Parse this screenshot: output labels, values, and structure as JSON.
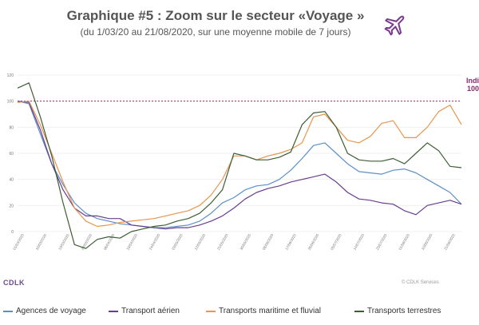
{
  "title": "Graphique #5 : Zoom sur le secteur «Voyage »",
  "subtitle": "(du 1/03/20 au 21/08/2020, sur une moyenne mobile de 7 jours)",
  "icon": "airplane-icon",
  "brand": "CDLK",
  "copyright": "© CDLK Services",
  "ref_label_1": "Indi",
  "ref_label_2": "100",
  "colors": {
    "agences": "#5b8fc7",
    "aerien": "#6a3d8f",
    "maritime": "#e6954f",
    "terrestres": "#3d5e35",
    "reference": "#8a2a6a",
    "title": "#555555"
  },
  "chart_data": {
    "type": "line",
    "ylim": [
      0,
      120
    ],
    "yticks": [
      "0",
      "20",
      "40",
      "60",
      "80",
      "100",
      "120"
    ],
    "reference_line": 100,
    "x_tick_labels": [
      "01/03/2020",
      "10/03/2020",
      "19/03/2020",
      "28/03/2020",
      "06/04/2020",
      "15/04/2020",
      "24/04/2020",
      "03/05/2020",
      "12/05/2020",
      "21/05/2020",
      "30/05/2020",
      "08/06/2020",
      "17/06/2020",
      "26/06/2020",
      "05/07/2020",
      "14/07/2020",
      "23/07/2020",
      "01/08/2020",
      "10/08/2020",
      "21/08/2020"
    ],
    "series": [
      {
        "name": "Agences de voyage",
        "color": "#5b8fc7",
        "values": [
          100,
          98,
          75,
          52,
          36,
          22,
          14,
          10,
          8,
          6,
          5,
          4,
          3,
          3,
          4,
          5,
          8,
          14,
          22,
          26,
          32,
          35,
          36,
          40,
          47,
          56,
          66,
          68,
          60,
          52,
          46,
          45,
          44,
          47,
          48,
          45,
          40,
          35,
          30,
          21
        ]
      },
      {
        "name": "Transport aérien",
        "color": "#6a3d8f",
        "values": [
          100,
          99,
          78,
          52,
          32,
          18,
          12,
          12,
          10,
          10,
          5,
          4,
          3,
          2,
          3,
          3,
          5,
          8,
          12,
          18,
          25,
          30,
          33,
          35,
          38,
          40,
          42,
          44,
          38,
          30,
          25,
          24,
          22,
          21,
          16,
          13,
          20,
          22,
          24,
          21
        ]
      },
      {
        "name": "Transports maritime et fluvial",
        "color": "#e6954f",
        "values": [
          99,
          100,
          82,
          60,
          38,
          18,
          8,
          4,
          5,
          7,
          8,
          9,
          10,
          12,
          14,
          16,
          20,
          28,
          40,
          58,
          58,
          55,
          58,
          60,
          63,
          68,
          88,
          90,
          80,
          70,
          68,
          73,
          83,
          85,
          72,
          72,
          80,
          92,
          97,
          82
        ]
      },
      {
        "name": "Transports terrestres",
        "color": "#3d5e35",
        "values": [
          110,
          114,
          88,
          58,
          22,
          -10,
          -13,
          -6,
          -4,
          -5,
          0,
          2,
          4,
          5,
          8,
          10,
          14,
          22,
          32,
          60,
          58,
          55,
          55,
          57,
          61,
          82,
          91,
          92,
          80,
          60,
          55,
          54,
          54,
          56,
          52,
          60,
          68,
          62,
          50,
          49
        ]
      }
    ]
  }
}
